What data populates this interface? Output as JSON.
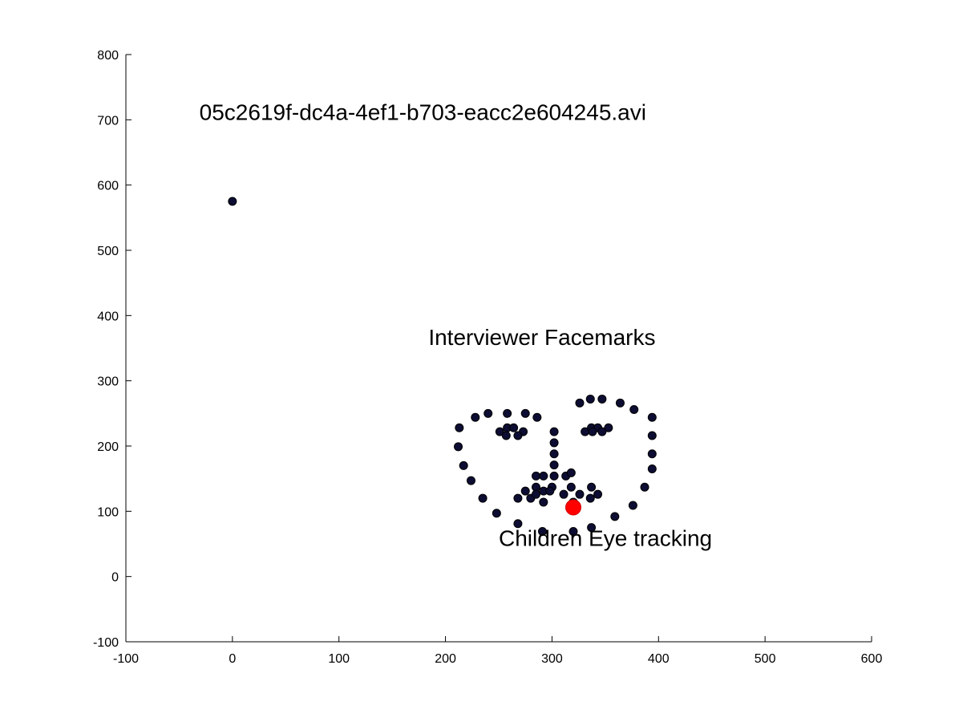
{
  "chart_data": {
    "type": "scatter",
    "title": "",
    "xlabel": "",
    "ylabel": "",
    "xlim": [
      -100,
      600
    ],
    "ylim": [
      -100,
      800
    ],
    "grid": false,
    "x_ticks": [
      -100,
      0,
      100,
      200,
      300,
      400,
      500,
      600
    ],
    "y_ticks": [
      -100,
      0,
      100,
      200,
      300,
      400,
      500,
      600,
      700,
      800
    ],
    "annotations": [
      {
        "text": "05c2619f-dc4a-4ef1-b703-eacc2e604245.avi",
        "x": -31,
        "y": 700
      },
      {
        "text": "Interviewer Facemarks",
        "x": 184,
        "y": 355
      },
      {
        "text": "Children Eye tracking",
        "x": 250,
        "y": 47
      }
    ],
    "series": [
      {
        "color": "#0d0d33",
        "marker": "circle",
        "points": [
          [
            0,
            575
          ],
          [
            213,
            228
          ],
          [
            212,
            199
          ],
          [
            217,
            170
          ],
          [
            224,
            147
          ],
          [
            235,
            120
          ],
          [
            248,
            97
          ],
          [
            268,
            81
          ],
          [
            291,
            69
          ],
          [
            320,
            69
          ],
          [
            337,
            75
          ],
          [
            359,
            92
          ],
          [
            376,
            109
          ],
          [
            387,
            137
          ],
          [
            394,
            165
          ],
          [
            394,
            188
          ],
          [
            394,
            216
          ],
          [
            394,
            244
          ],
          [
            228,
            244
          ],
          [
            240,
            250
          ],
          [
            258,
            250
          ],
          [
            275,
            250
          ],
          [
            286,
            244
          ],
          [
            326,
            266
          ],
          [
            336,
            272
          ],
          [
            347,
            272
          ],
          [
            364,
            266
          ],
          [
            377,
            256
          ],
          [
            302,
            222
          ],
          [
            302,
            205
          ],
          [
            302,
            188
          ],
          [
            302,
            171
          ],
          [
            302,
            154
          ],
          [
            285,
            154
          ],
          [
            292,
            154
          ],
          [
            313,
            154
          ],
          [
            318,
            159
          ],
          [
            251,
            222
          ],
          [
            258,
            228
          ],
          [
            264,
            228
          ],
          [
            273,
            222
          ],
          [
            268,
            216
          ],
          [
            257,
            216
          ],
          [
            331,
            222
          ],
          [
            337,
            228
          ],
          [
            343,
            228
          ],
          [
            353,
            228
          ],
          [
            347,
            222
          ],
          [
            338,
            222
          ],
          [
            268,
            120
          ],
          [
            275,
            131
          ],
          [
            285,
            137
          ],
          [
            292,
            131
          ],
          [
            300,
            137
          ],
          [
            318,
            137
          ],
          [
            326,
            126
          ],
          [
            337,
            137
          ],
          [
            343,
            126
          ],
          [
            336,
            120
          ],
          [
            320,
            114
          ],
          [
            292,
            114
          ],
          [
            280,
            120
          ],
          [
            285,
            126
          ],
          [
            298,
            131
          ],
          [
            311,
            126
          ]
        ]
      },
      {
        "color": "#ff0000",
        "marker": "circle",
        "points": [
          [
            320,
            106
          ]
        ]
      }
    ]
  }
}
